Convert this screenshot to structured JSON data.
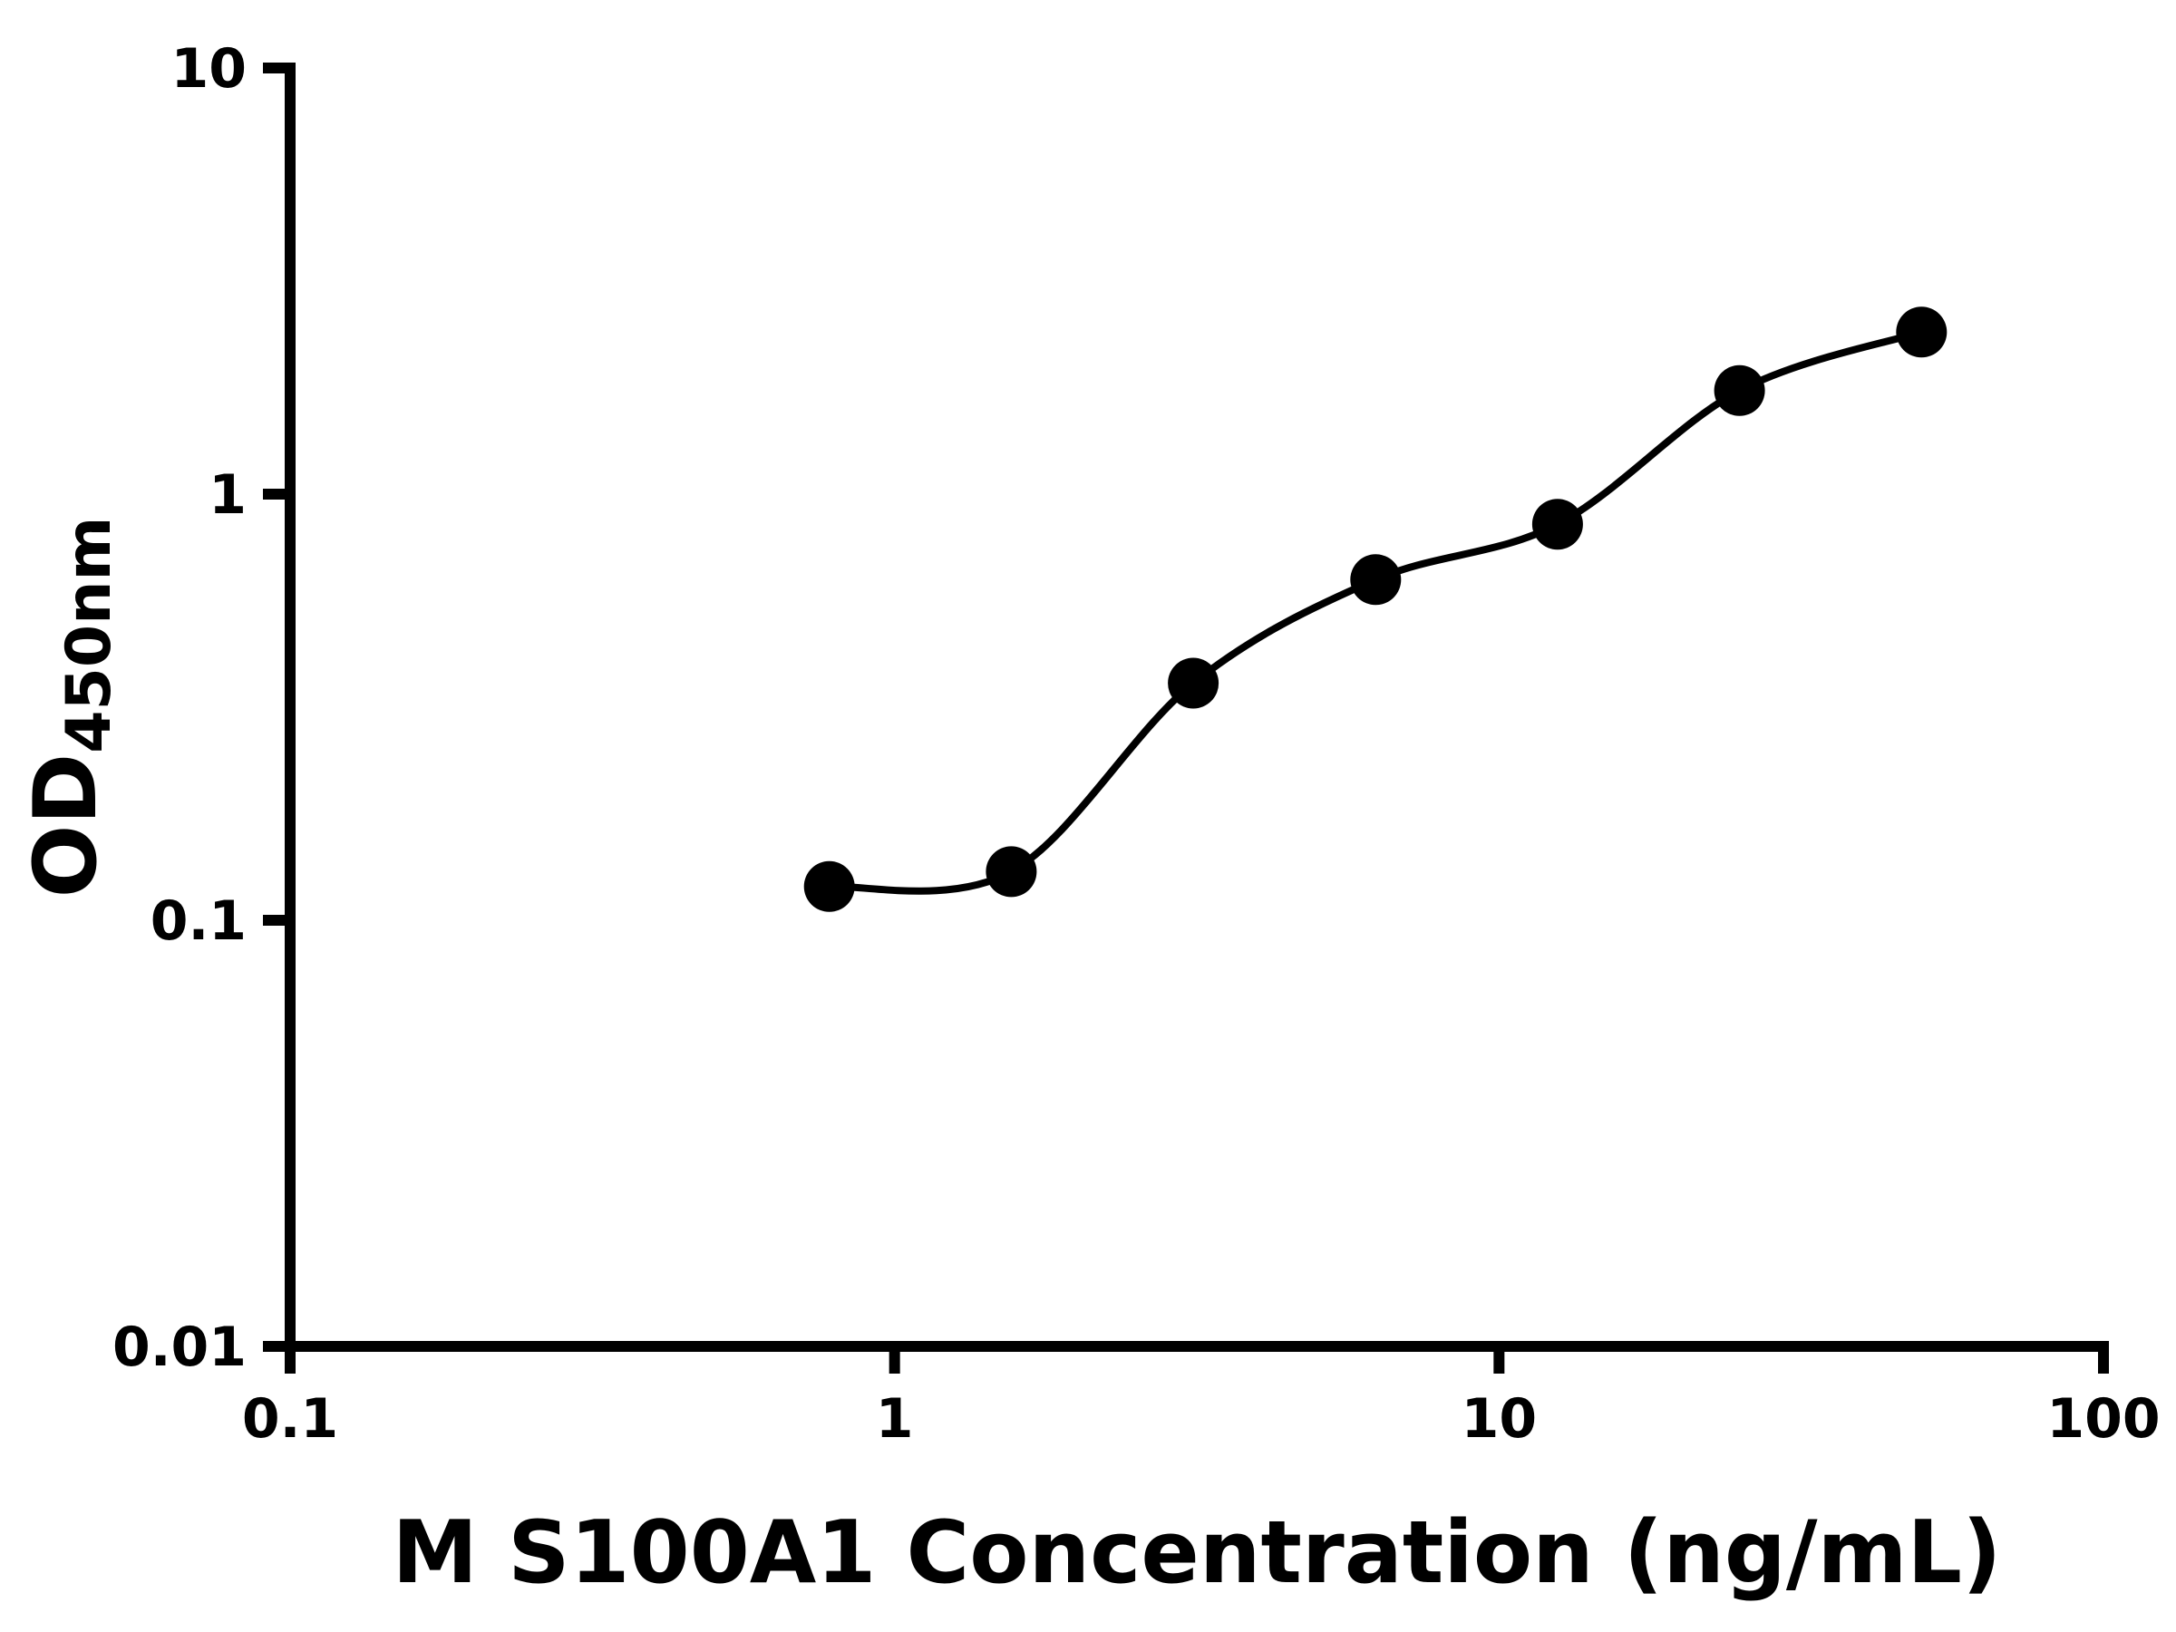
{
  "chart_data": {
    "type": "scatter",
    "subtype": "log-log standard curve with fitted line",
    "title": "",
    "xlabel": "M S100A1 Concentration (ng/mL)",
    "ylabel_main": "OD",
    "ylabel_sub": "450nm",
    "xscale": "log",
    "yscale": "log",
    "xlim": [
      0.1,
      100
    ],
    "ylim": [
      0.01,
      10
    ],
    "x_ticks": [
      0.1,
      1,
      10,
      100
    ],
    "x_tick_labels": [
      "0.1",
      "1",
      "10",
      "100"
    ],
    "y_ticks": [
      0.01,
      0.1,
      1,
      10
    ],
    "y_tick_labels": [
      "0.01",
      "0.1",
      "1",
      "10"
    ],
    "grid": "off",
    "legend": "none",
    "points": [
      {
        "x": 0.78,
        "y": 0.12
      },
      {
        "x": 1.56,
        "y": 0.13
      },
      {
        "x": 3.12,
        "y": 0.36
      },
      {
        "x": 6.25,
        "y": 0.63
      },
      {
        "x": 12.5,
        "y": 0.85
      },
      {
        "x": 25,
        "y": 1.75
      },
      {
        "x": 50,
        "y": 2.4
      }
    ],
    "fit_curve": "smooth sigmoidal fit through points from x=0.78 to x=50",
    "colors": {
      "background": "#ffffff",
      "axis": "#000000",
      "points": "#000000",
      "curve": "#000000"
    }
  }
}
